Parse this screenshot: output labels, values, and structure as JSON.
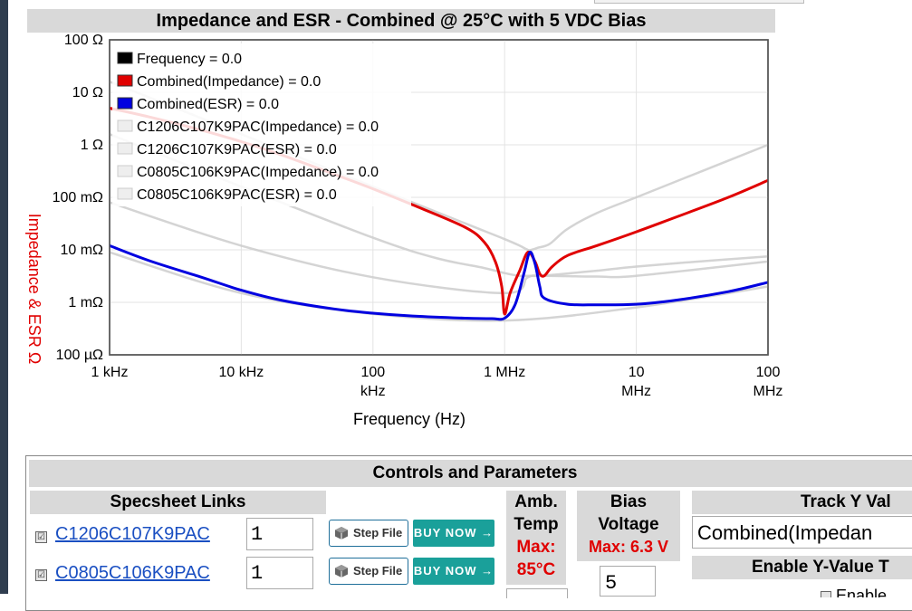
{
  "chart_data": {
    "type": "line",
    "title": "Impedance and ESR - Combined @ 25°C with 5 VDC Bias",
    "xlabel": "Frequency (Hz)",
    "ylabel": "Impedance & ESR Ω",
    "x_scale": "log",
    "y_scale": "log",
    "xlim": [
      1000,
      100000000
    ],
    "ylim": [
      0.0001,
      100
    ],
    "grid": true,
    "legend_position": "top-left",
    "x_ticks": [
      {
        "value": 1000,
        "label": "1 kHz"
      },
      {
        "value": 10000,
        "label": "10 kHz"
      },
      {
        "value": 100000,
        "label": "100\nkHz"
      },
      {
        "value": 1000000,
        "label": "1 MHz"
      },
      {
        "value": 10000000,
        "label": "10\nMHz"
      },
      {
        "value": 100000000,
        "label": "100\nMHz"
      }
    ],
    "y_ticks": [
      {
        "value": 100,
        "label": "100 Ω"
      },
      {
        "value": 10,
        "label": "10 Ω"
      },
      {
        "value": 1,
        "label": "1 Ω"
      },
      {
        "value": 0.1,
        "label": "100 mΩ"
      },
      {
        "value": 0.01,
        "label": "10 mΩ"
      },
      {
        "value": 0.001,
        "label": "1 mΩ"
      },
      {
        "value": 0.0001,
        "label": "100 µΩ"
      }
    ],
    "series": [
      {
        "name": "Frequency",
        "legend": "Frequency = 0.0",
        "color": "#000000",
        "x": [],
        "y": []
      },
      {
        "name": "Combined(Impedance)",
        "legend": "Combined(Impedance) = 0.0",
        "color": "#e00000",
        "x": [
          1000,
          2000,
          5000,
          10000,
          20000,
          50000,
          100000,
          200000,
          500000,
          700000,
          850000,
          950000,
          1000000,
          1100000,
          1300000,
          1500000,
          1700000,
          1850000,
          2000000,
          2300000,
          3000000,
          5000000,
          10000000,
          20000000,
          50000000,
          100000000
        ],
        "y": [
          5,
          3.4,
          1.9,
          1.15,
          0.65,
          0.28,
          0.145,
          0.072,
          0.027,
          0.014,
          0.006,
          0.002,
          0.0006,
          0.0015,
          0.004,
          0.009,
          0.006,
          0.0035,
          0.0032,
          0.0048,
          0.0078,
          0.012,
          0.022,
          0.042,
          0.1,
          0.21
        ]
      },
      {
        "name": "Combined(ESR)",
        "legend": "Combined(ESR) = 0.0",
        "color": "#0000e0",
        "x": [
          1000,
          2000,
          5000,
          10000,
          20000,
          50000,
          100000,
          200000,
          500000,
          800000,
          1000000,
          1200000,
          1400000,
          1550000,
          1700000,
          1850000,
          2000000,
          3000000,
          5000000,
          10000000,
          20000000,
          50000000,
          100000000
        ],
        "y": [
          0.012,
          0.0062,
          0.003,
          0.0017,
          0.0011,
          0.00075,
          0.00062,
          0.00055,
          0.0005,
          0.00049,
          0.0005,
          0.0009,
          0.0035,
          0.009,
          0.0055,
          0.002,
          0.0012,
          0.00092,
          0.0009,
          0.00092,
          0.0011,
          0.0016,
          0.0024
        ]
      },
      {
        "name": "C1206C107K9PAC(Impedance)",
        "legend": "C1206C107K9PAC(Impedance) = 0.0",
        "color": "#cccccc",
        "x": [
          1000,
          10000,
          100000,
          300000,
          700000,
          1000000,
          1300000,
          1500000,
          1800000,
          2500000,
          5000000,
          10000000,
          30000000,
          100000000
        ],
        "y": [
          1.6,
          0.16,
          0.017,
          0.007,
          0.0045,
          0.0036,
          0.0032,
          0.0032,
          0.0032,
          0.0034,
          0.004,
          0.0048,
          0.006,
          0.0075
        ]
      },
      {
        "name": "C1206C107K9PAC(ESR)",
        "legend": "C1206C107K9PAC(ESR) = 0.0",
        "color": "#cccccc",
        "x": [
          1000,
          10000,
          100000,
          1000000,
          10000000,
          100000000
        ],
        "y": [
          0.009,
          0.0015,
          0.0006,
          0.00045,
          0.0008,
          0.002
        ]
      },
      {
        "name": "C0805C106K9PAC(Impedance)",
        "legend": "C0805C106K9PAC(Impedance) = 0.0",
        "color": "#cccccc",
        "x": [
          1000,
          10000,
          100000,
          500000,
          1000000,
          1300000,
          1500000,
          1600000,
          1800000,
          2200000,
          3000000,
          5000000,
          10000000,
          30000000,
          100000000
        ],
        "y": [
          16,
          1.6,
          0.16,
          0.032,
          0.016,
          0.012,
          0.01,
          0.01,
          0.011,
          0.013,
          0.025,
          0.05,
          0.1,
          0.3,
          1
        ]
      },
      {
        "name": "C0805C106K9PAC(ESR)",
        "legend": "C0805C106K9PAC(ESR) = 0.0",
        "color": "#cccccc",
        "x": [
          1000,
          10000,
          100000,
          1000000,
          1500000,
          2000000,
          5000000,
          10000000,
          100000000
        ],
        "y": [
          0.08,
          0.012,
          0.003,
          0.0015,
          0.003,
          0.0032,
          0.0031,
          0.0032,
          0.006
        ]
      }
    ]
  },
  "controls": {
    "title": "Controls and Parameters",
    "specsheet_header": "Specsheet Links",
    "parts": [
      {
        "name": "C1206C107K9PAC",
        "qty": "1",
        "checked": "☑"
      },
      {
        "name": "C0805C106K9PAC",
        "qty": "1",
        "checked": "☑"
      }
    ],
    "step_label": "Step File",
    "buy_label": "BUY NOW →",
    "amb_temp": {
      "line1": "Amb.",
      "line2": "Temp",
      "max_line1": "Max:",
      "max_line2": "85°C"
    },
    "bias": {
      "line1": "Bias",
      "line2": "Voltage",
      "max": "Max: 6.3 V",
      "value": "5"
    },
    "track": {
      "header": "Track Y Val",
      "value": "Combined(Impedan",
      "enable_header": "Enable Y-Value T",
      "enable_label": "Enable"
    }
  }
}
